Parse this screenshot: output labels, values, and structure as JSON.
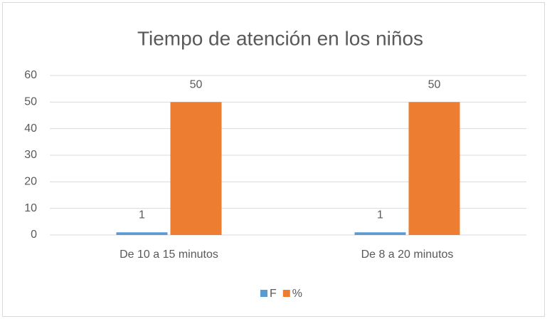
{
  "chart_data": {
    "type": "bar",
    "title": "Tiempo de atención en los niños",
    "categories": [
      "De 10 a 15 minutos",
      "De 8 a 20 minutos"
    ],
    "series": [
      {
        "name": "F",
        "color": "#5b9bd5",
        "values": [
          1,
          1
        ]
      },
      {
        "name": "%",
        "color": "#ed7d31",
        "values": [
          50,
          50
        ]
      }
    ],
    "ylim": [
      0,
      60
    ],
    "yticks": [
      0,
      10,
      20,
      30,
      40,
      50,
      60
    ],
    "grid": true,
    "legend": "bottom"
  }
}
